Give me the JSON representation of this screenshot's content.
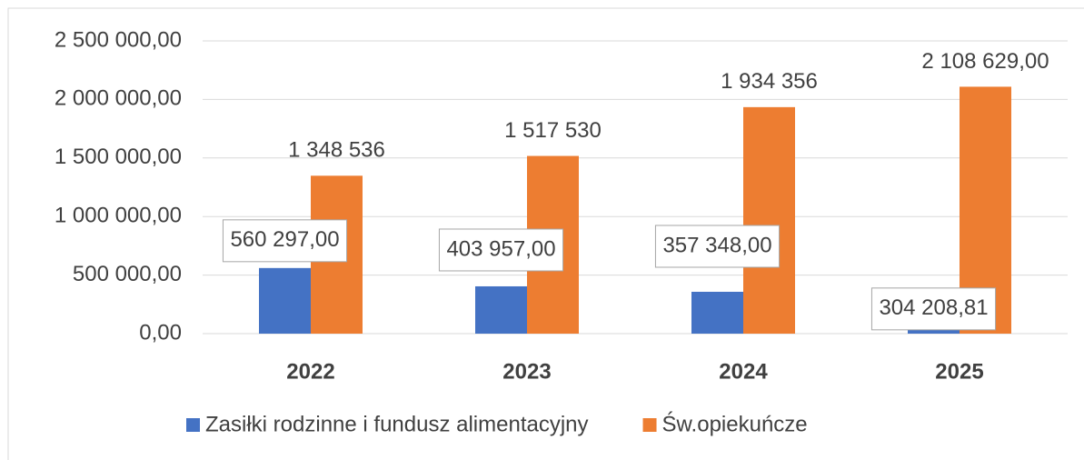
{
  "chart_data": {
    "type": "bar",
    "categories": [
      "2022",
      "2023",
      "2024",
      "2025"
    ],
    "series": [
      {
        "name": "Zasiłki rodzinne i fundusz alimentacyjny",
        "color": "#4472c4",
        "values": [
          560297,
          403957,
          357348,
          304208.81
        ],
        "value_labels": [
          "560 297,00",
          "403 957,00",
          "357 348,00",
          "304 208,81"
        ]
      },
      {
        "name": "Św.opiekuńcze",
        "color": "#ed7d31",
        "values": [
          1348536,
          1517530,
          1934356,
          2108629
        ],
        "value_labels": [
          "1 348 536",
          "1 517 530",
          "1 934 356",
          "2 108 629,00"
        ]
      }
    ],
    "ylim": [
      0,
      2500000
    ],
    "yticks": [
      {
        "value": 0,
        "label": "0,00"
      },
      {
        "value": 500000,
        "label": "500 000,00"
      },
      {
        "value": 1000000,
        "label": "1 000 000,00"
      },
      {
        "value": 1500000,
        "label": "1 500 000,00"
      },
      {
        "value": 2000000,
        "label": "2 000 000,00"
      },
      {
        "value": 2500000,
        "label": "2 500 000,00"
      }
    ],
    "grid": true,
    "legend": "bottom"
  }
}
